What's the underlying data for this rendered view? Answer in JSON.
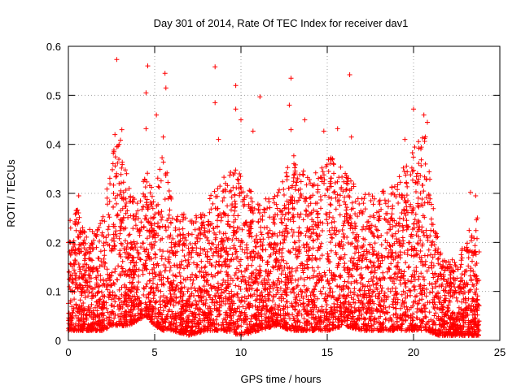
{
  "chart_data": {
    "type": "scatter",
    "title": "Day 301 of 2014, Rate Of TEC Index for receiver dav1",
    "xlabel": "GPS time / hours",
    "ylabel": "ROTI / TECUs",
    "xlim": [
      0,
      25
    ],
    "ylim": [
      0,
      0.6
    ],
    "xticks": [
      "0",
      "5",
      "10",
      "15",
      "20",
      "25"
    ],
    "yticks": [
      "0",
      "0.1",
      "0.2",
      "0.3",
      "0.4",
      "0.5",
      "0.6"
    ],
    "grid": true,
    "marker": "plus",
    "color": "#ff0000",
    "x_extent": [
      0,
      23.8
    ],
    "point_density_envelope": [
      {
        "x": 0.0,
        "ymin": 0.02,
        "ymax": 0.22
      },
      {
        "x": 0.5,
        "ymin": 0.02,
        "ymax": 0.27
      },
      {
        "x": 1.0,
        "ymin": 0.02,
        "ymax": 0.22
      },
      {
        "x": 2.0,
        "ymin": 0.02,
        "ymax": 0.25
      },
      {
        "x": 2.5,
        "ymin": 0.03,
        "ymax": 0.38
      },
      {
        "x": 3.0,
        "ymin": 0.03,
        "ymax": 0.42
      },
      {
        "x": 3.5,
        "ymin": 0.03,
        "ymax": 0.32
      },
      {
        "x": 4.0,
        "ymin": 0.04,
        "ymax": 0.28
      },
      {
        "x": 4.5,
        "ymin": 0.05,
        "ymax": 0.35
      },
      {
        "x": 5.0,
        "ymin": 0.03,
        "ymax": 0.3
      },
      {
        "x": 5.5,
        "ymin": 0.02,
        "ymax": 0.4
      },
      {
        "x": 6.0,
        "ymin": 0.02,
        "ymax": 0.28
      },
      {
        "x": 7.0,
        "ymin": 0.01,
        "ymax": 0.25
      },
      {
        "x": 8.0,
        "ymin": 0.02,
        "ymax": 0.28
      },
      {
        "x": 9.0,
        "ymin": 0.02,
        "ymax": 0.35
      },
      {
        "x": 10.0,
        "ymin": 0.01,
        "ymax": 0.35
      },
      {
        "x": 11.0,
        "ymin": 0.02,
        "ymax": 0.28
      },
      {
        "x": 12.0,
        "ymin": 0.03,
        "ymax": 0.3
      },
      {
        "x": 13.0,
        "ymin": 0.02,
        "ymax": 0.38
      },
      {
        "x": 14.0,
        "ymin": 0.02,
        "ymax": 0.33
      },
      {
        "x": 15.0,
        "ymin": 0.02,
        "ymax": 0.38
      },
      {
        "x": 16.0,
        "ymin": 0.03,
        "ymax": 0.35
      },
      {
        "x": 17.0,
        "ymin": 0.02,
        "ymax": 0.3
      },
      {
        "x": 18.0,
        "ymin": 0.02,
        "ymax": 0.3
      },
      {
        "x": 19.0,
        "ymin": 0.02,
        "ymax": 0.32
      },
      {
        "x": 20.0,
        "ymin": 0.02,
        "ymax": 0.4
      },
      {
        "x": 20.7,
        "ymin": 0.02,
        "ymax": 0.42
      },
      {
        "x": 21.5,
        "ymin": 0.01,
        "ymax": 0.18
      },
      {
        "x": 22.5,
        "ymin": 0.01,
        "ymax": 0.16
      },
      {
        "x": 23.5,
        "ymin": 0.01,
        "ymax": 0.25
      }
    ],
    "notable_points": [
      {
        "x": 2.8,
        "y": 0.573
      },
      {
        "x": 4.6,
        "y": 0.56
      },
      {
        "x": 8.5,
        "y": 0.558
      },
      {
        "x": 5.6,
        "y": 0.545
      },
      {
        "x": 16.3,
        "y": 0.542
      },
      {
        "x": 12.9,
        "y": 0.535
      },
      {
        "x": 9.7,
        "y": 0.52
      },
      {
        "x": 5.65,
        "y": 0.515
      },
      {
        "x": 4.5,
        "y": 0.505
      },
      {
        "x": 11.1,
        "y": 0.497
      },
      {
        "x": 8.5,
        "y": 0.485
      },
      {
        "x": 12.8,
        "y": 0.48
      },
      {
        "x": 20.0,
        "y": 0.472
      },
      {
        "x": 9.7,
        "y": 0.472
      },
      {
        "x": 20.6,
        "y": 0.46
      },
      {
        "x": 5.1,
        "y": 0.46
      },
      {
        "x": 10.0,
        "y": 0.45
      },
      {
        "x": 13.7,
        "y": 0.45
      },
      {
        "x": 20.8,
        "y": 0.445
      },
      {
        "x": 4.5,
        "y": 0.432
      },
      {
        "x": 12.9,
        "y": 0.43
      },
      {
        "x": 3.1,
        "y": 0.43
      },
      {
        "x": 10.7,
        "y": 0.427
      },
      {
        "x": 14.8,
        "y": 0.427
      },
      {
        "x": 15.6,
        "y": 0.432
      },
      {
        "x": 2.7,
        "y": 0.42
      },
      {
        "x": 5.5,
        "y": 0.415
      },
      {
        "x": 8.7,
        "y": 0.41
      },
      {
        "x": 19.5,
        "y": 0.41
      },
      {
        "x": 16.4,
        "y": 0.415
      },
      {
        "x": 23.3,
        "y": 0.302
      },
      {
        "x": 23.6,
        "y": 0.295
      },
      {
        "x": 23.7,
        "y": 0.25
      },
      {
        "x": 0.6,
        "y": 0.295
      },
      {
        "x": 0.1,
        "y": 0.245
      }
    ]
  }
}
